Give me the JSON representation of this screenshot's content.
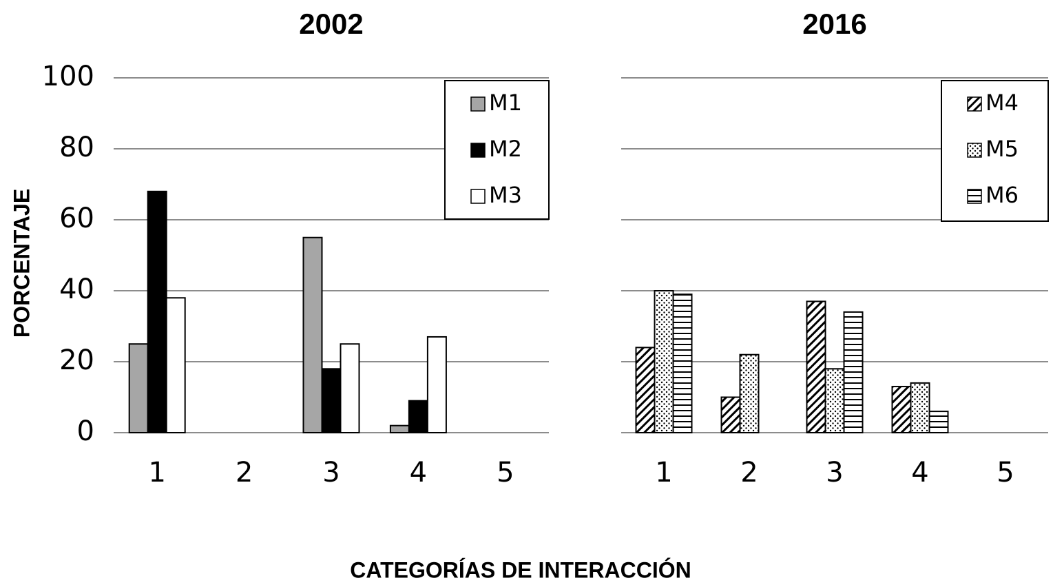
{
  "y_label": "PORCENTAJE",
  "x_label": "CATEGORÍAS DE INTERACCIÓN",
  "chart_data": [
    {
      "type": "bar",
      "title": "2002",
      "categories": [
        "1",
        "2",
        "3",
        "4",
        "5"
      ],
      "series": [
        {
          "name": "M1",
          "color": "#a6a6a6",
          "values": [
            25,
            0,
            55,
            2,
            0
          ]
        },
        {
          "name": "M2",
          "color": "#000000",
          "values": [
            68,
            0,
            18,
            9,
            0
          ]
        },
        {
          "name": "M3",
          "color": "#ffffff",
          "values": [
            38,
            0,
            25,
            27,
            0
          ]
        }
      ],
      "ylim": [
        0,
        100
      ],
      "yticks": [
        0,
        20,
        40,
        60,
        80,
        100
      ],
      "grid": true,
      "legend": "upper right"
    },
    {
      "type": "bar",
      "title": "2016",
      "categories": [
        "1",
        "2",
        "3",
        "4",
        "5"
      ],
      "series": [
        {
          "name": "M4",
          "color": "#000000",
          "pattern": "diagonal",
          "values": [
            24,
            10,
            37,
            13,
            0
          ]
        },
        {
          "name": "M5",
          "color": "#000000",
          "pattern": "dots",
          "values": [
            40,
            22,
            18,
            14,
            0
          ]
        },
        {
          "name": "M6",
          "color": "#000000",
          "pattern": "horizontal",
          "values": [
            39,
            0,
            34,
            6,
            0
          ]
        }
      ],
      "ylim": [
        0,
        100
      ],
      "yticks": [
        0,
        20,
        40,
        60,
        80,
        100
      ],
      "grid": true,
      "legend": "upper right"
    }
  ]
}
